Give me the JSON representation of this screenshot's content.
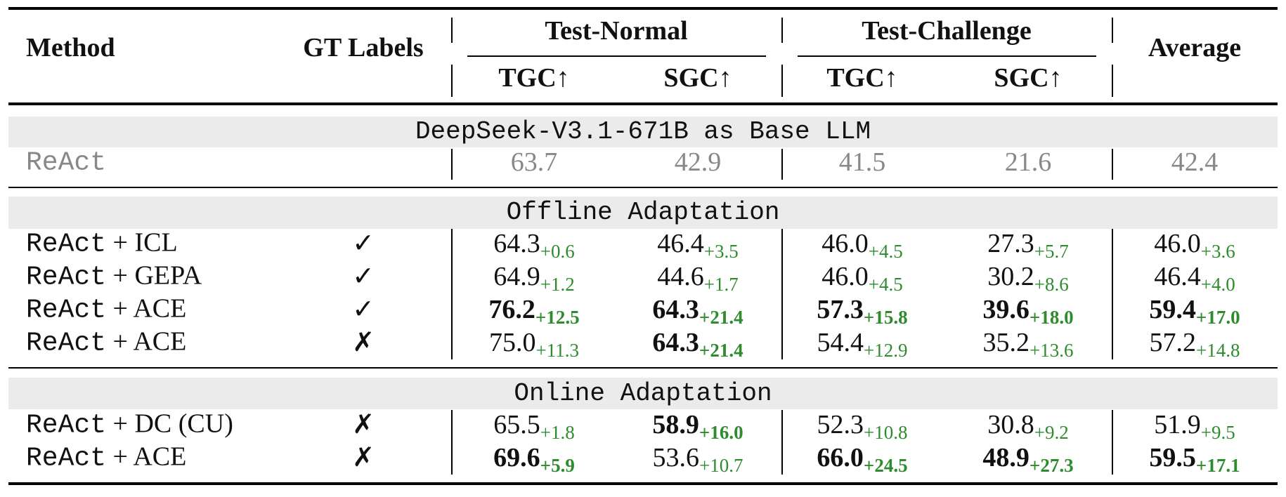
{
  "table": {
    "header": {
      "method": "Method",
      "gt_labels": "GT Labels",
      "groups": [
        "Test-Normal",
        "Test-Challenge"
      ],
      "average": "Average",
      "subcols": [
        "TGC↑",
        "SGC↑",
        "TGC↑",
        "SGC↑"
      ]
    },
    "sections": [
      {
        "title": "DeepSeek-V3.1-671B as Base LLM",
        "muted": true,
        "rows": [
          {
            "base": "ReAct",
            "cells": [
              {
                "value": "63.7"
              },
              {
                "value": "42.9"
              },
              {
                "value": "41.5"
              },
              {
                "value": "21.6"
              },
              {
                "value": "42.4"
              }
            ]
          }
        ]
      },
      {
        "title": "Offline Adaptation",
        "rows": [
          {
            "base": "ReAct",
            "method": "+ ICL",
            "gt": "✓",
            "cells": [
              {
                "value": "64.3",
                "delta": "+0.6"
              },
              {
                "value": "46.4",
                "delta": "+3.5"
              },
              {
                "value": "46.0",
                "delta": "+4.5"
              },
              {
                "value": "27.3",
                "delta": "+5.7"
              },
              {
                "value": "46.0",
                "delta": "+3.6"
              }
            ]
          },
          {
            "base": "ReAct",
            "method": "+ GEPA",
            "gt": "✓",
            "cells": [
              {
                "value": "64.9",
                "delta": "+1.2"
              },
              {
                "value": "44.6",
                "delta": "+1.7"
              },
              {
                "value": "46.0",
                "delta": "+4.5"
              },
              {
                "value": "30.2",
                "delta": "+8.6"
              },
              {
                "value": "46.4",
                "delta": "+4.0"
              }
            ]
          },
          {
            "base": "ReAct",
            "method": "+ ACE",
            "gt": "✓",
            "cells": [
              {
                "value": "76.2",
                "delta": "+12.5",
                "bold": true
              },
              {
                "value": "64.3",
                "delta": "+21.4",
                "bold": true
              },
              {
                "value": "57.3",
                "delta": "+15.8",
                "bold": true
              },
              {
                "value": "39.6",
                "delta": "+18.0",
                "bold": true
              },
              {
                "value": "59.4",
                "delta": "+17.0",
                "bold": true
              }
            ]
          },
          {
            "base": "ReAct",
            "method": "+ ACE",
            "gt": "✗",
            "cells": [
              {
                "value": "75.0",
                "delta": "+11.3"
              },
              {
                "value": "64.3",
                "delta": "+21.4",
                "bold": true
              },
              {
                "value": "54.4",
                "delta": "+12.9"
              },
              {
                "value": "35.2",
                "delta": "+13.6"
              },
              {
                "value": "57.2",
                "delta": "+14.8"
              }
            ]
          }
        ]
      },
      {
        "title": "Online Adaptation",
        "rows": [
          {
            "base": "ReAct",
            "method": "+ DC (CU)",
            "gt": "✗",
            "cells": [
              {
                "value": "65.5",
                "delta": "+1.8"
              },
              {
                "value": "58.9",
                "delta": "+16.0",
                "bold": true
              },
              {
                "value": "52.3",
                "delta": "+10.8"
              },
              {
                "value": "30.8",
                "delta": "+9.2"
              },
              {
                "value": "51.9",
                "delta": "+9.5"
              }
            ]
          },
          {
            "base": "ReAct",
            "method": "+ ACE",
            "gt": "✗",
            "cells": [
              {
                "value": "69.6",
                "delta": "+5.9",
                "bold": true
              },
              {
                "value": "53.6",
                "delta": "+10.7"
              },
              {
                "value": "66.0",
                "delta": "+24.5",
                "bold": true
              },
              {
                "value": "48.9",
                "delta": "+27.3",
                "bold": true
              },
              {
                "value": "59.5",
                "delta": "+17.1",
                "bold": true
              }
            ]
          }
        ]
      }
    ]
  }
}
